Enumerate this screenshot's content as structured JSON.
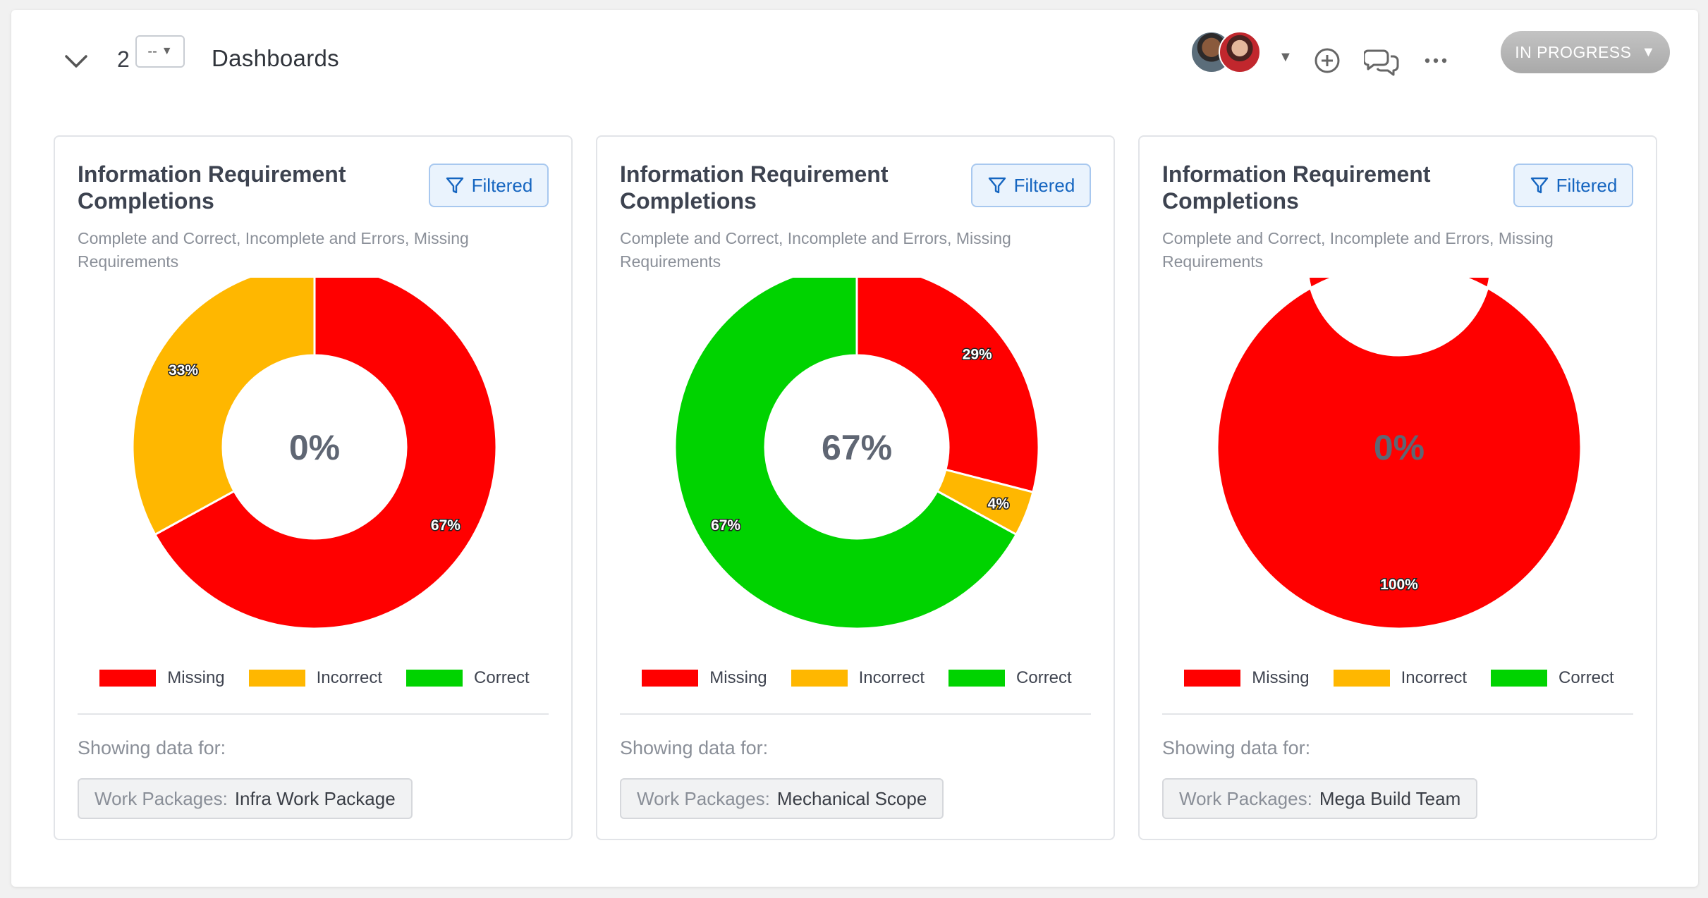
{
  "header": {
    "row_number": "2",
    "select_value": "--",
    "title": "Dashboards",
    "status": "IN PROGRESS"
  },
  "colors": {
    "missing": "#ff0000",
    "incorrect": "#ffb700",
    "correct": "#00d300",
    "filtered_accent": "#1565c0"
  },
  "cards": [
    {
      "title": "Information Requirement Completions",
      "filter_label": "Filtered",
      "subtitle": "Complete and Correct, Incomplete and Errors, Missing Requirements",
      "center_label": "0%",
      "legend": [
        "Missing",
        "Incorrect",
        "Correct"
      ],
      "showing_label": "Showing data for:",
      "tag_key": "Work Packages:",
      "tag_value": "Infra Work Package"
    },
    {
      "title": "Information Requirement Completions",
      "filter_label": "Filtered",
      "subtitle": "Complete and Correct, Incomplete and Errors, Missing Requirements",
      "center_label": "67%",
      "legend": [
        "Missing",
        "Incorrect",
        "Correct"
      ],
      "showing_label": "Showing data for:",
      "tag_key": "Work Packages:",
      "tag_value": "Mechanical Scope"
    },
    {
      "title": "Information Requirement Completions",
      "filter_label": "Filtered",
      "subtitle": "Complete and Correct, Incomplete and Errors, Missing Requirements",
      "center_label": "0%",
      "legend": [
        "Missing",
        "Incorrect",
        "Correct"
      ],
      "showing_label": "Showing data for:",
      "tag_key": "Work Packages:",
      "tag_value": "Mega Build Team"
    }
  ],
  "chart_data": [
    {
      "type": "pie",
      "categories": [
        "Missing",
        "Incorrect",
        "Correct"
      ],
      "values": [
        67,
        33,
        0
      ],
      "labels": [
        "67%",
        "33%",
        ""
      ],
      "center_text": "0%",
      "legend_placement": "bottom"
    },
    {
      "type": "pie",
      "categories": [
        "Missing",
        "Incorrect",
        "Correct"
      ],
      "values": [
        29,
        4,
        67
      ],
      "labels": [
        "29%",
        "4%",
        "67%"
      ],
      "center_text": "67%",
      "legend_placement": "bottom"
    },
    {
      "type": "pie",
      "categories": [
        "Missing",
        "Incorrect",
        "Correct"
      ],
      "values": [
        100,
        0,
        0
      ],
      "labels": [
        "100%",
        "",
        ""
      ],
      "center_text": "0%",
      "legend_placement": "bottom"
    }
  ]
}
